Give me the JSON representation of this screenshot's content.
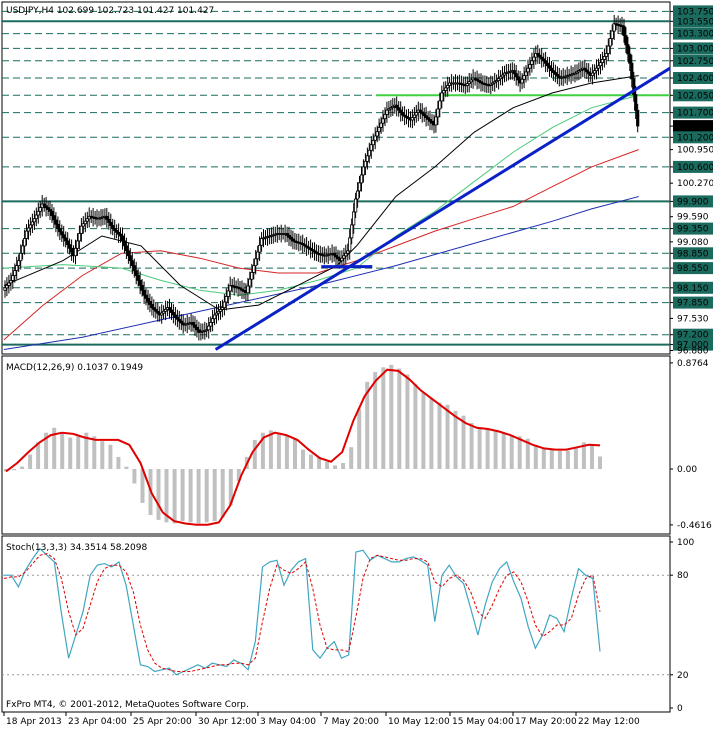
{
  "header": {
    "symbol_line": "USDJPY,H4  102.699 102.723 101.427 101.427",
    "macd_label": "MACD(12,26,9) 0.1037 0.1949",
    "stoch_label": "Stoch(13,3,3) 34.3514 58.2098",
    "copyright": "FxPro MT4, © 2001-2012, MetaQuotes Software Corp."
  },
  "colors": {
    "level_line": "#1a6b5e",
    "trend_line": "#0b21c8",
    "green_level": "#3fd13f",
    "ma_black": "#000000",
    "ma_green": "#4ccb7a",
    "ma_red": "#d42424",
    "ma_blue": "#1f2fb3",
    "candle": "#000000",
    "macd_hist": "#c0c0c0",
    "macd_signal": "#e00000",
    "stoch_main": "#3fa6c2",
    "stoch_signal": "#e00000",
    "current_price_box": "#000000"
  },
  "chart_data": [
    {
      "type": "candlestick",
      "title": "USDJPY,H4",
      "ylim": [
        96.85,
        103.9
      ],
      "price_axis_labels": [
        "103.750",
        "103.550",
        "103.300",
        "103.000",
        "102.750",
        "102.400",
        "102.050",
        "101.700",
        "101.427",
        "101.200",
        "100.950",
        "100.600",
        "100.270",
        "99.900",
        "99.590",
        "99.350",
        "99.080",
        "98.850",
        "98.550",
        "98.150",
        "97.850",
        "97.530",
        "97.200",
        "97.000",
        "96.880"
      ],
      "boxed_levels": [
        103.75,
        103.55,
        103.3,
        103.0,
        102.75,
        102.4,
        102.05,
        101.7,
        101.2,
        100.6,
        99.9,
        99.35,
        98.85,
        98.55,
        98.15,
        97.85,
        97.2,
        97.0
      ],
      "current_price": 101.427,
      "x_tick_labels": [
        "18 Apr 2013",
        "23 Apr 04:00",
        "25 Apr 20:00",
        "30 Apr 12:00",
        "3 May 04:00",
        "7 May 20:00",
        "10 May 12:00",
        "15 May 04:00",
        "17 May 20:00",
        "22 May 12:00"
      ],
      "close_path": [
        [
          0,
          98.1
        ],
        [
          4,
          98.3
        ],
        [
          8,
          98.7
        ],
        [
          12,
          99.3
        ],
        [
          16,
          99.55
        ],
        [
          20,
          99.85
        ],
        [
          24,
          99.7
        ],
        [
          28,
          99.35
        ],
        [
          32,
          99.1
        ],
        [
          36,
          98.8
        ],
        [
          40,
          99.4
        ],
        [
          44,
          99.6
        ],
        [
          48,
          99.55
        ],
        [
          52,
          99.6
        ],
        [
          56,
          99.35
        ],
        [
          60,
          99.2
        ],
        [
          64,
          98.8
        ],
        [
          68,
          98.4
        ],
        [
          72,
          98.0
        ],
        [
          76,
          97.75
        ],
        [
          80,
          97.6
        ],
        [
          84,
          97.75
        ],
        [
          88,
          97.55
        ],
        [
          92,
          97.4
        ],
        [
          96,
          97.45
        ],
        [
          100,
          97.25
        ],
        [
          104,
          97.3
        ],
        [
          108,
          97.6
        ],
        [
          112,
          97.75
        ],
        [
          116,
          98.2
        ],
        [
          120,
          98.15
        ],
        [
          124,
          98.05
        ],
        [
          128,
          98.6
        ],
        [
          132,
          99.15
        ],
        [
          136,
          99.2
        ],
        [
          140,
          99.25
        ],
        [
          144,
          99.25
        ],
        [
          148,
          99.1
        ],
        [
          152,
          99.05
        ],
        [
          156,
          98.95
        ],
        [
          160,
          98.85
        ],
        [
          164,
          98.8
        ],
        [
          168,
          98.85
        ],
        [
          172,
          98.7
        ],
        [
          176,
          98.9
        ],
        [
          180,
          99.95
        ],
        [
          184,
          100.6
        ],
        [
          188,
          101.05
        ],
        [
          192,
          101.4
        ],
        [
          196,
          101.75
        ],
        [
          200,
          101.85
        ],
        [
          204,
          101.65
        ],
        [
          208,
          101.55
        ],
        [
          212,
          101.75
        ],
        [
          216,
          101.6
        ],
        [
          220,
          101.45
        ],
        [
          224,
          102.1
        ],
        [
          228,
          102.3
        ],
        [
          232,
          102.3
        ],
        [
          236,
          102.25
        ],
        [
          240,
          102.4
        ],
        [
          244,
          102.3
        ],
        [
          248,
          102.25
        ],
        [
          252,
          102.35
        ],
        [
          256,
          102.5
        ],
        [
          260,
          102.55
        ],
        [
          264,
          102.3
        ],
        [
          268,
          102.6
        ],
        [
          272,
          102.9
        ],
        [
          276,
          102.75
        ],
        [
          280,
          102.55
        ],
        [
          284,
          102.4
        ],
        [
          288,
          102.45
        ],
        [
          292,
          102.5
        ],
        [
          296,
          102.6
        ],
        [
          300,
          102.45
        ],
        [
          304,
          102.65
        ],
        [
          308,
          102.9
        ],
        [
          312,
          103.5
        ],
        [
          316,
          103.45
        ],
        [
          320,
          102.7
        ],
        [
          324,
          101.43
        ]
      ],
      "ma_black": [
        [
          0,
          98.2
        ],
        [
          30,
          98.7
        ],
        [
          50,
          99.2
        ],
        [
          70,
          99.0
        ],
        [
          90,
          98.2
        ],
        [
          110,
          97.7
        ],
        [
          130,
          97.8
        ],
        [
          150,
          98.2
        ],
        [
          170,
          98.6
        ],
        [
          180,
          99.0
        ],
        [
          200,
          100.0
        ],
        [
          220,
          100.6
        ],
        [
          240,
          101.3
        ],
        [
          260,
          101.8
        ],
        [
          280,
          102.1
        ],
        [
          300,
          102.3
        ],
        [
          324,
          102.45
        ]
      ],
      "ma_green": [
        [
          0,
          98.55
        ],
        [
          30,
          98.62
        ],
        [
          60,
          98.55
        ],
        [
          80,
          98.3
        ],
        [
          100,
          98.1
        ],
        [
          120,
          98.0
        ],
        [
          140,
          98.1
        ],
        [
          160,
          98.3
        ],
        [
          180,
          98.55
        ],
        [
          200,
          99.2
        ],
        [
          220,
          99.7
        ],
        [
          240,
          100.3
        ],
        [
          260,
          100.9
        ],
        [
          280,
          101.4
        ],
        [
          300,
          101.8
        ],
        [
          324,
          102.05
        ]
      ],
      "ma_red": [
        [
          0,
          97.1
        ],
        [
          20,
          97.8
        ],
        [
          40,
          98.4
        ],
        [
          60,
          98.85
        ],
        [
          80,
          98.9
        ],
        [
          100,
          98.75
        ],
        [
          120,
          98.55
        ],
        [
          140,
          98.45
        ],
        [
          160,
          98.45
        ],
        [
          180,
          98.7
        ],
        [
          200,
          99.0
        ],
        [
          220,
          99.3
        ],
        [
          240,
          99.55
        ],
        [
          260,
          99.8
        ],
        [
          280,
          100.2
        ],
        [
          300,
          100.6
        ],
        [
          324,
          100.95
        ]
      ],
      "ma_blue": [
        [
          0,
          96.9
        ],
        [
          40,
          97.15
        ],
        [
          80,
          97.5
        ],
        [
          120,
          97.85
        ],
        [
          160,
          98.2
        ],
        [
          200,
          98.6
        ],
        [
          240,
          99.05
        ],
        [
          280,
          99.5
        ],
        [
          300,
          99.75
        ],
        [
          324,
          100.0
        ]
      ],
      "trend_lines": [
        [
          [
            108,
            96.9
          ],
          [
            340,
            102.6
          ]
        ],
        [
          [
            162,
            98.58
          ],
          [
            188,
            98.58
          ]
        ]
      ],
      "green_level": 102.05
    },
    {
      "type": "bar",
      "title": "MACD(12,26,9) 0.1037 0.1949",
      "ylim": [
        -0.52,
        0.9
      ],
      "axis_labels": [
        "0.8764",
        "0.00",
        "-0.4616"
      ],
      "histogram": [
        -0.02,
        -0.01,
        0.02,
        0.12,
        0.22,
        0.3,
        0.34,
        0.3,
        0.26,
        0.27,
        0.3,
        0.27,
        0.23,
        0.2,
        0.1,
        0.02,
        -0.12,
        -0.28,
        -0.38,
        -0.42,
        -0.44,
        -0.45,
        -0.43,
        -0.44,
        -0.45,
        -0.44,
        -0.43,
        -0.4,
        -0.3,
        -0.1,
        0.1,
        0.24,
        0.3,
        0.32,
        0.3,
        0.28,
        0.25,
        0.16,
        0.12,
        0.1,
        0.06,
        0.03,
        0.05,
        0.18,
        0.5,
        0.72,
        0.8,
        0.84,
        0.86,
        0.83,
        0.78,
        0.7,
        0.63,
        0.58,
        0.55,
        0.53,
        0.48,
        0.44,
        0.38,
        0.34,
        0.33,
        0.32,
        0.3,
        0.28,
        0.27,
        0.25,
        0.2,
        0.17,
        0.16,
        0.15,
        0.15,
        0.18,
        0.22,
        0.2,
        0.1037
      ],
      "signal": [
        -0.02,
        0.05,
        0.14,
        0.22,
        0.28,
        0.3,
        0.29,
        0.26,
        0.24,
        0.24,
        0.24,
        0.2,
        0.05,
        -0.2,
        -0.36,
        -0.43,
        -0.45,
        -0.46,
        -0.46,
        -0.44,
        -0.3,
        -0.05,
        0.14,
        0.26,
        0.3,
        0.28,
        0.24,
        0.16,
        0.09,
        0.06,
        0.14,
        0.4,
        0.6,
        0.73,
        0.82,
        0.81,
        0.74,
        0.65,
        0.58,
        0.51,
        0.44,
        0.38,
        0.34,
        0.33,
        0.31,
        0.28,
        0.24,
        0.2,
        0.17,
        0.16,
        0.16,
        0.18,
        0.2,
        0.1949
      ]
    },
    {
      "type": "line",
      "title": "Stoch(13,3,3) 34.3514 58.2098",
      "ylim": [
        0,
        100
      ],
      "axis_labels": [
        "100",
        "80",
        "20",
        "0"
      ],
      "levels": [
        80,
        20
      ],
      "main": [
        80,
        80,
        73,
        83,
        90,
        96,
        92,
        88,
        57,
        30,
        44,
        58,
        80,
        86,
        87,
        85,
        88,
        74,
        50,
        26,
        25,
        22,
        23,
        24,
        20,
        22,
        24,
        26,
        24,
        27,
        26,
        25,
        29,
        27,
        23,
        40,
        85,
        88,
        89,
        74,
        83,
        88,
        90,
        35,
        30,
        36,
        40,
        30,
        32,
        94,
        95,
        89,
        92,
        90,
        88,
        88,
        90,
        91,
        89,
        86,
        52,
        80,
        86,
        79,
        75,
        60,
        44,
        62,
        76,
        84,
        88,
        76,
        66,
        49,
        36,
        44,
        56,
        54,
        46,
        66,
        84,
        80,
        78,
        34
      ],
      "signal": [
        78,
        79,
        79,
        82,
        87,
        92,
        93,
        90,
        78,
        58,
        44,
        48,
        62,
        76,
        84,
        86,
        86,
        82,
        70,
        50,
        35,
        27,
        24,
        23,
        22,
        22,
        22,
        23,
        24,
        25,
        26,
        26,
        27,
        27,
        26,
        30,
        52,
        72,
        86,
        83,
        81,
        84,
        88,
        72,
        50,
        36,
        35,
        35,
        34,
        55,
        78,
        90,
        92,
        91,
        90,
        89,
        89,
        90,
        90,
        88,
        76,
        73,
        78,
        80,
        77,
        70,
        58,
        54,
        62,
        72,
        80,
        82,
        76,
        64,
        50,
        43,
        46,
        50,
        50,
        54,
        68,
        78,
        80,
        58
      ]
    }
  ]
}
